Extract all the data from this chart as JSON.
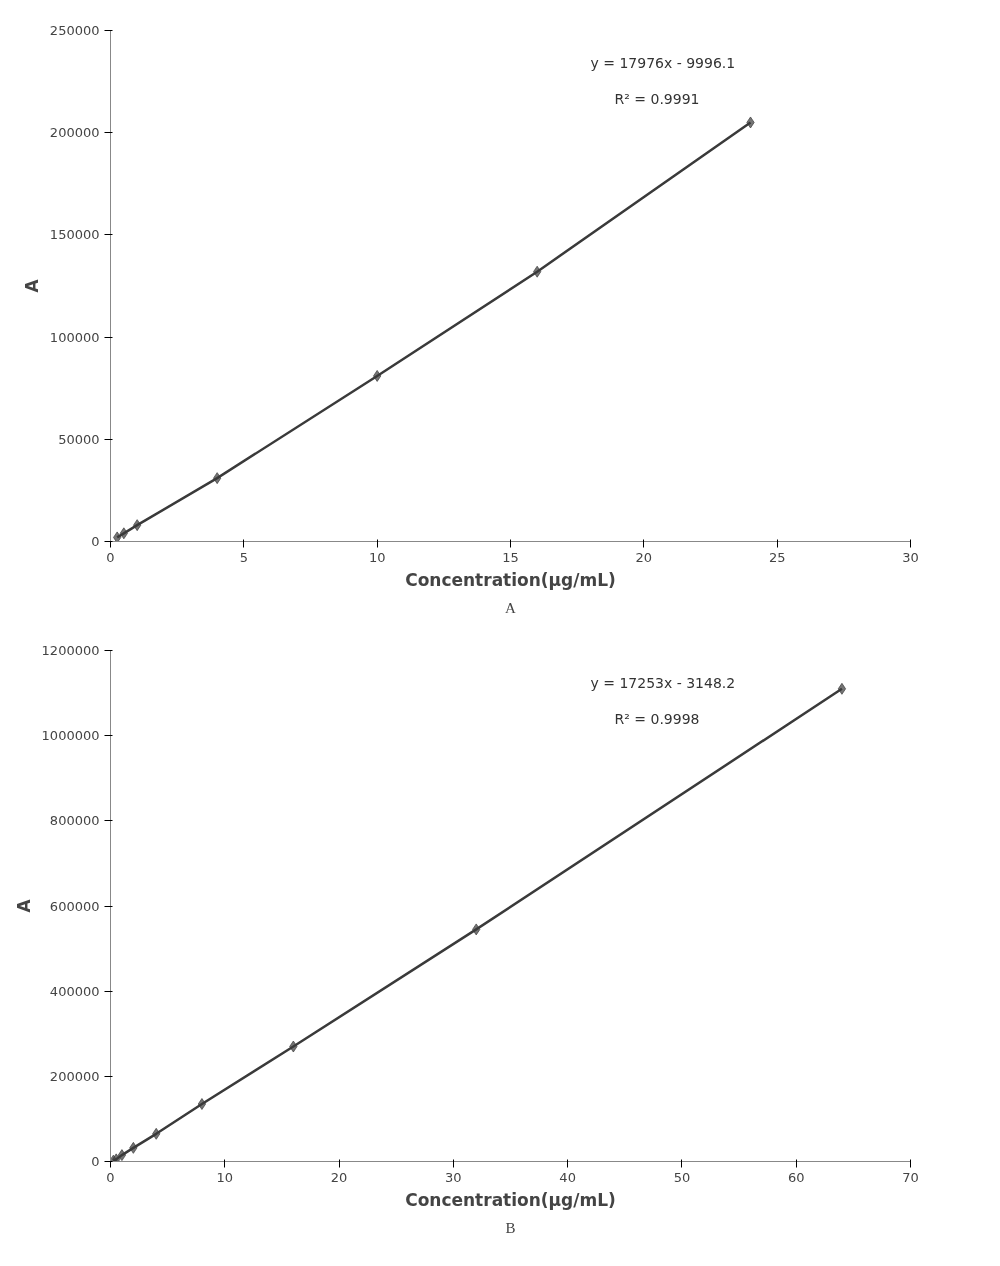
{
  "chart_data": [
    {
      "type": "line",
      "xlabel": "Concentration(μg/mL)",
      "ylabel": "A",
      "x": [
        0.25,
        0.5,
        1,
        4,
        10,
        16,
        24
      ],
      "series": [
        {
          "color": "#3a3a3a",
          "values": [
            2000,
            4000,
            8000,
            31000,
            81000,
            132000,
            205000
          ]
        }
      ],
      "xlim": [
        0,
        30
      ],
      "xticks": [
        0,
        5,
        10,
        15,
        20,
        25,
        30
      ],
      "ylim": [
        0,
        250000
      ],
      "yticks": [
        0,
        50000,
        100000,
        150000,
        200000,
        250000
      ],
      "marker": "diamond",
      "line_style": "solid",
      "grid": false,
      "annotations": [
        "y = 17976x - 9996.1",
        "R² = 0.9991",
        "A"
      ]
    },
    {
      "type": "line",
      "xlabel": "Concentration(μg/mL)",
      "ylabel": "A",
      "x": [
        0.25,
        0.5,
        1,
        2,
        4,
        8,
        16,
        32,
        64
      ],
      "series": [
        {
          "color": "#3a3a3a",
          "values": [
            2000,
            5000,
            15000,
            32000,
            65000,
            135000,
            270000,
            545000,
            1110000
          ]
        }
      ],
      "xlim": [
        0,
        70
      ],
      "xticks": [
        0,
        10,
        20,
        30,
        40,
        50,
        60,
        70
      ],
      "ylim": [
        0,
        1200000
      ],
      "yticks": [
        0,
        200000,
        400000,
        600000,
        800000,
        1000000,
        1200000
      ],
      "marker": "diamond",
      "line_style": "solid",
      "grid": false,
      "annotations": [
        "y = 17253x - 3148.2",
        "R² = 0.9998",
        "B"
      ]
    }
  ]
}
